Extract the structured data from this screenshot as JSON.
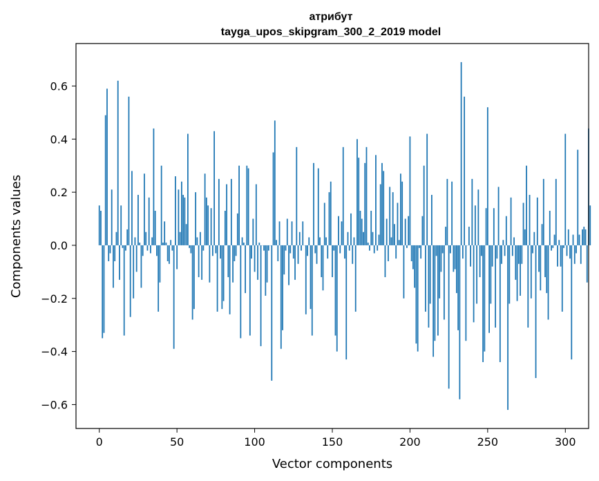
{
  "chart_data": {
    "type": "bar",
    "title_line1": "атрибут",
    "title_line2": "tayga_upos_skipgram_300_2_2019 model",
    "xlabel": "Vector components",
    "ylabel": "Components values",
    "xlim": [
      -15,
      315
    ],
    "ylim": [
      -0.69,
      0.76
    ],
    "xticks": [
      0,
      50,
      100,
      150,
      200,
      250,
      300
    ],
    "xtick_labels": [
      "0",
      "50",
      "100",
      "150",
      "200",
      "250",
      "300"
    ],
    "yticks": [
      -0.6,
      -0.4,
      -0.2,
      0.0,
      0.2,
      0.4,
      0.6
    ],
    "ytick_labels": [
      "−0.6",
      "−0.4",
      "−0.2",
      "0.0",
      "0.2",
      "0.4",
      "0.6"
    ],
    "bar_color": "#1f77b4",
    "values": [
      0.15,
      0.13,
      -0.35,
      -0.33,
      0.49,
      0.59,
      -0.06,
      -0.03,
      0.21,
      -0.16,
      -0.06,
      0.05,
      0.62,
      -0.13,
      0.15,
      -0.01,
      -0.34,
      -0.02,
      0.06,
      0.56,
      -0.27,
      0.28,
      -0.2,
      0.03,
      -0.1,
      0.19,
      0.01,
      -0.16,
      -0.04,
      0.27,
      0.05,
      -0.02,
      0.18,
      -0.03,
      0.03,
      0.44,
      0.13,
      -0.04,
      -0.25,
      -0.14,
      0.3,
      0.01,
      0.09,
      0.01,
      -0.06,
      -0.07,
      0.02,
      -0.02,
      -0.39,
      0.26,
      -0.09,
      0.21,
      0.05,
      0.24,
      0.19,
      0.18,
      0.08,
      0.42,
      -0.01,
      -0.03,
      -0.28,
      -0.24,
      0.2,
      0.03,
      -0.12,
      0.05,
      -0.13,
      -0.02,
      0.27,
      0.18,
      0.15,
      -0.14,
      0.14,
      -0.04,
      0.43,
      -0.03,
      -0.25,
      0.25,
      -0.05,
      -0.24,
      -0.21,
      0.13,
      0.23,
      -0.12,
      -0.26,
      0.25,
      -0.14,
      -0.06,
      -0.04,
      0.12,
      0.3,
      -0.35,
      0.03,
      0.01,
      -0.18,
      0.3,
      0.29,
      -0.34,
      -0.05,
      0.1,
      -0.1,
      0.23,
      -0.13,
      0.01,
      -0.38,
      0.0,
      -0.02,
      -0.19,
      -0.14,
      -0.02,
      0.0,
      -0.51,
      0.35,
      0.47,
      0.02,
      -0.06,
      0.09,
      -0.39,
      -0.32,
      -0.11,
      -0.02,
      0.1,
      -0.15,
      -0.03,
      0.09,
      -0.05,
      -0.13,
      0.37,
      -0.07,
      0.05,
      -0.02,
      0.09,
      0.0,
      -0.26,
      -0.04,
      0.03,
      -0.24,
      -0.34,
      0.31,
      -0.03,
      -0.07,
      0.29,
      0.03,
      -0.12,
      -0.17,
      0.16,
      0.03,
      -0.05,
      0.2,
      0.24,
      -0.12,
      -0.02,
      -0.34,
      -0.4,
      0.11,
      -0.03,
      0.09,
      0.37,
      -0.05,
      -0.43,
      0.05,
      -0.02,
      0.12,
      -0.07,
      0.03,
      -0.25,
      0.4,
      0.33,
      0.13,
      0.1,
      0.05,
      0.31,
      0.37,
      0.01,
      -0.02,
      0.13,
      0.05,
      -0.03,
      0.34,
      -0.02,
      0.04,
      0.23,
      0.31,
      0.28,
      -0.12,
      0.1,
      -0.06,
      0.22,
      0.03,
      0.2,
      0.08,
      -0.05,
      0.16,
      0.02,
      0.27,
      0.24,
      -0.2,
      0.1,
      -0.01,
      0.11,
      0.41,
      -0.06,
      -0.09,
      -0.16,
      -0.37,
      -0.4,
      -0.01,
      -0.05,
      0.11,
      0.3,
      -0.25,
      0.42,
      -0.31,
      -0.22,
      0.19,
      -0.42,
      -0.36,
      -0.04,
      -0.34,
      -0.2,
      -0.1,
      -0.03,
      -0.28,
      0.07,
      0.25,
      -0.54,
      -0.03,
      0.24,
      -0.1,
      -0.09,
      -0.18,
      -0.32,
      -0.58,
      0.69,
      -0.05,
      0.56,
      -0.36,
      0.0,
      0.07,
      -0.08,
      0.25,
      -0.29,
      0.15,
      -0.22,
      0.21,
      -0.12,
      -0.04,
      -0.44,
      -0.4,
      0.14,
      0.52,
      -0.33,
      -0.22,
      -0.08,
      0.14,
      -0.31,
      -0.05,
      0.22,
      -0.44,
      -0.07,
      0.02,
      -0.04,
      0.11,
      -0.62,
      -0.22,
      0.18,
      -0.04,
      0.03,
      -0.13,
      -0.21,
      -0.07,
      -0.19,
      -0.07,
      0.16,
      0.06,
      0.3,
      -0.31,
      0.19,
      -0.2,
      -0.03,
      0.05,
      -0.5,
      0.18,
      -0.1,
      -0.17,
      0.08,
      0.25,
      -0.12,
      -0.18,
      -0.28,
      0.13,
      -0.02,
      -0.01,
      0.04,
      0.25,
      -0.08,
      0.02,
      -0.08,
      -0.25,
      -0.01,
      0.42,
      -0.04,
      0.06,
      -0.05,
      -0.43,
      0.04,
      -0.07,
      -0.03,
      0.36,
      0.04,
      -0.07,
      0.06,
      0.07,
      0.06,
      -0.14,
      0.44,
      0.15
    ]
  }
}
